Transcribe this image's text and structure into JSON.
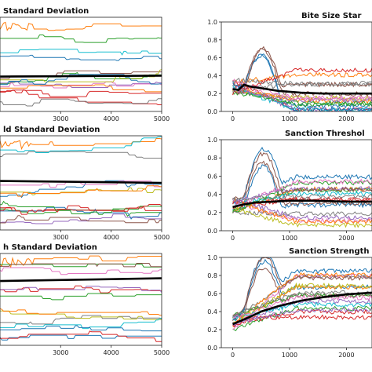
{
  "colors": {
    "mean_line": "#000000",
    "palette": [
      "#1f77b4",
      "#ff7f0e",
      "#2ca02c",
      "#d62728",
      "#9467bd",
      "#8c564b",
      "#e377c2",
      "#7f7f7f",
      "#bcbd22",
      "#17becf"
    ]
  },
  "chart_data": [
    {
      "id": "p1",
      "type": "line",
      "title": "Standard Deviation",
      "x_ticks": [
        3000,
        4000,
        5000
      ],
      "y_ticks": [],
      "xlim": [
        1800,
        5000
      ],
      "ylim": [
        0,
        1
      ],
      "series_count": 14,
      "mean": {
        "x": [
          1800,
          5000
        ],
        "y": [
          0.37,
          0.38
        ]
      }
    },
    {
      "id": "p2",
      "type": "line",
      "title": "Bite Size Star",
      "x_ticks": [
        0,
        1000,
        2000
      ],
      "y_ticks": [
        "0.0",
        "0.2",
        "0.4",
        "0.6",
        "0.8",
        "1.0"
      ],
      "xlim": [
        -200,
        2450
      ],
      "ylim": [
        0,
        1
      ],
      "series_count": 18,
      "mean": {
        "x": [
          0,
          100,
          200,
          300,
          500,
          800,
          1200,
          1600,
          2000,
          2450
        ],
        "y": [
          0.25,
          0.24,
          0.3,
          0.28,
          0.26,
          0.23,
          0.21,
          0.2,
          0.2,
          0.2
        ]
      }
    },
    {
      "id": "p3",
      "type": "line",
      "title": "ld Standard Deviation",
      "x_ticks": [
        3000,
        4000,
        5000
      ],
      "y_ticks": [],
      "xlim": [
        1800,
        5000
      ],
      "ylim": [
        0,
        1
      ],
      "series_count": 14,
      "mean": {
        "x": [
          1800,
          5000
        ],
        "y": [
          0.52,
          0.5
        ]
      }
    },
    {
      "id": "p4",
      "type": "line",
      "title": "Sanction Threshol",
      "x_ticks": [
        0,
        1000,
        2000
      ],
      "y_ticks": [
        "0.0",
        "0.2",
        "0.4",
        "0.6",
        "0.8",
        "1.0"
      ],
      "xlim": [
        -200,
        2450
      ],
      "ylim": [
        0,
        1
      ],
      "series_count": 18,
      "mean": {
        "x": [
          0,
          200,
          400,
          700,
          1000,
          1400,
          2000,
          2450
        ],
        "y": [
          0.26,
          0.29,
          0.31,
          0.32,
          0.33,
          0.33,
          0.32,
          0.32
        ]
      }
    },
    {
      "id": "p5",
      "type": "line",
      "title": "h Standard Deviation",
      "x_ticks": [
        3000,
        4000,
        5000
      ],
      "y_ticks": [],
      "xlim": [
        1800,
        5000
      ],
      "ylim": [
        0,
        1
      ],
      "series_count": 14,
      "mean": {
        "x": [
          1800,
          5000
        ],
        "y": [
          0.7,
          0.73
        ]
      }
    },
    {
      "id": "p6",
      "type": "line",
      "title": "Sanction Strength",
      "x_ticks": [
        0,
        1000,
        2000
      ],
      "y_ticks": [
        "0.0",
        "0.2",
        "0.4",
        "0.6",
        "0.8",
        "1.0"
      ],
      "xlim": [
        -200,
        2450
      ],
      "ylim": [
        0,
        1
      ],
      "series_count": 18,
      "mean": {
        "x": [
          0,
          150,
          300,
          500,
          800,
          1200,
          1600,
          2000,
          2450
        ],
        "y": [
          0.26,
          0.3,
          0.34,
          0.4,
          0.46,
          0.52,
          0.56,
          0.59,
          0.61
        ]
      }
    }
  ]
}
